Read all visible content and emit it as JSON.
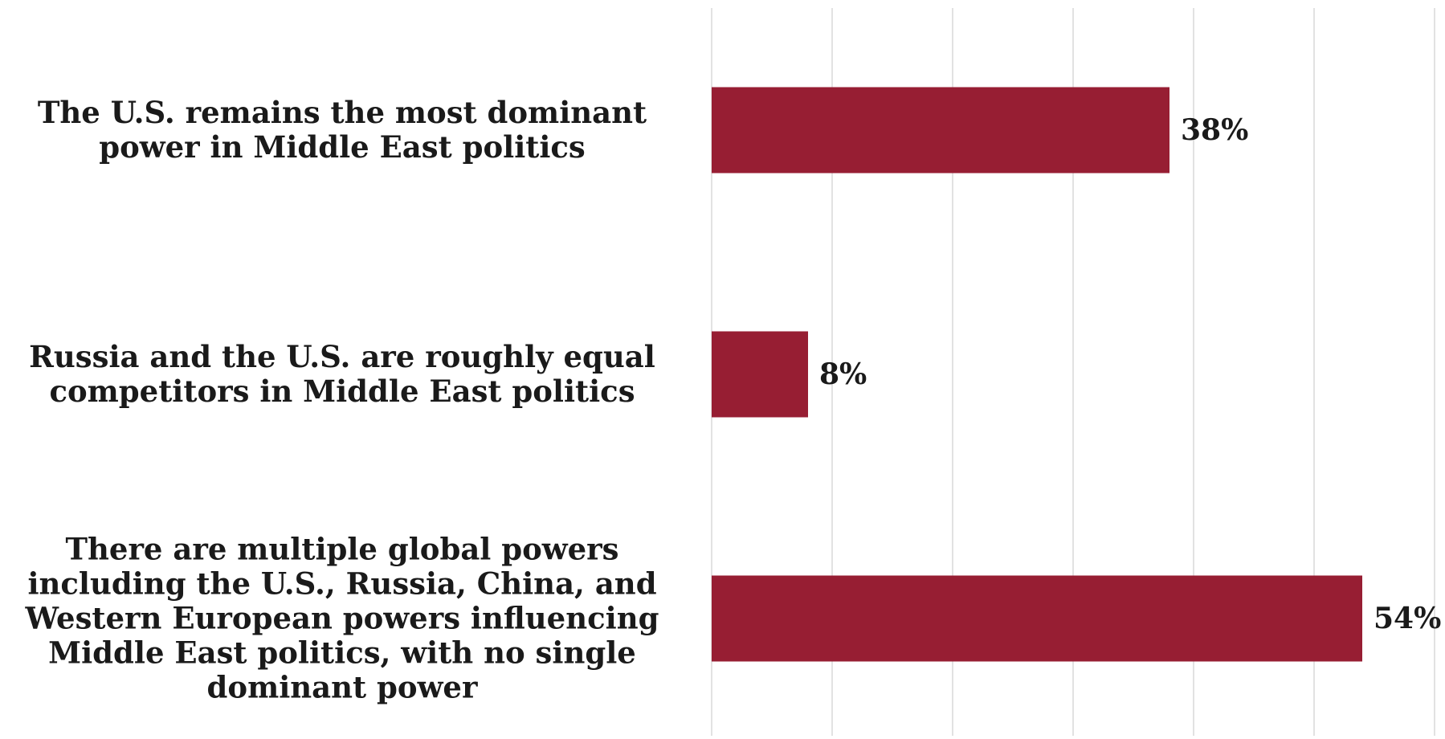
{
  "chart_data": {
    "type": "bar",
    "orientation": "horizontal",
    "categories": [
      "The U.S. remains the most dominant power in Middle East politics",
      "Russia and the U.S. are roughly equal competitors in Middle East politics",
      "There are multiple global powers including the U.S., Russia, China, and Western European powers influencing Middle East politics, with no single dominant power"
    ],
    "values": [
      38,
      8,
      54
    ],
    "value_labels": [
      "38%",
      "8%",
      "54%"
    ],
    "unit": "%",
    "xlim": [
      0,
      60
    ],
    "grid_interval": 10,
    "grid": true,
    "legend": "none",
    "bar_color": "#971e33",
    "grid_color": "#d9d9d9",
    "title": "",
    "xlabel": "",
    "ylabel": ""
  }
}
